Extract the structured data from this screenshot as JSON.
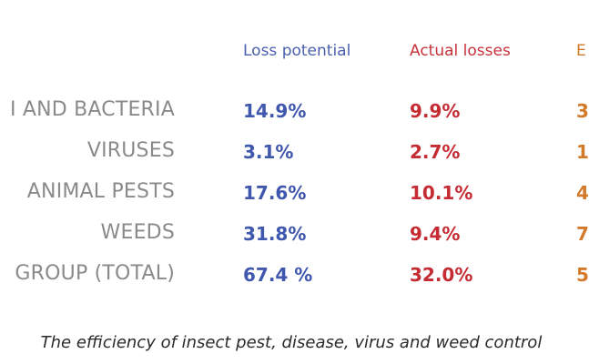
{
  "table": {
    "headers": {
      "potential": "Loss potential",
      "actual": "Actual losses",
      "third": "E"
    },
    "rows": [
      {
        "label": "I AND BACTERIA",
        "potential": "14.9%",
        "actual": "9.9%",
        "third": "3"
      },
      {
        "label": "VIRUSES",
        "potential": "3.1%",
        "actual": "2.7%",
        "third": "1"
      },
      {
        "label": "ANIMAL PESTS",
        "potential": "17.6%",
        "actual": "10.1%",
        "third": "4"
      },
      {
        "label": "WEEDS",
        "potential": "31.8%",
        "actual": "9.4%",
        "third": "7"
      },
      {
        "label": "GROUP (TOTAL)",
        "potential": "67.4 %",
        "actual": "32.0%",
        "third": "5"
      }
    ]
  },
  "caption": "The efficiency of insect pest, disease, virus and weed control",
  "colors": {
    "potential": "#3f57ad",
    "actual": "#c42b33",
    "third": "#d2792a",
    "label": "#8a8a8a"
  }
}
